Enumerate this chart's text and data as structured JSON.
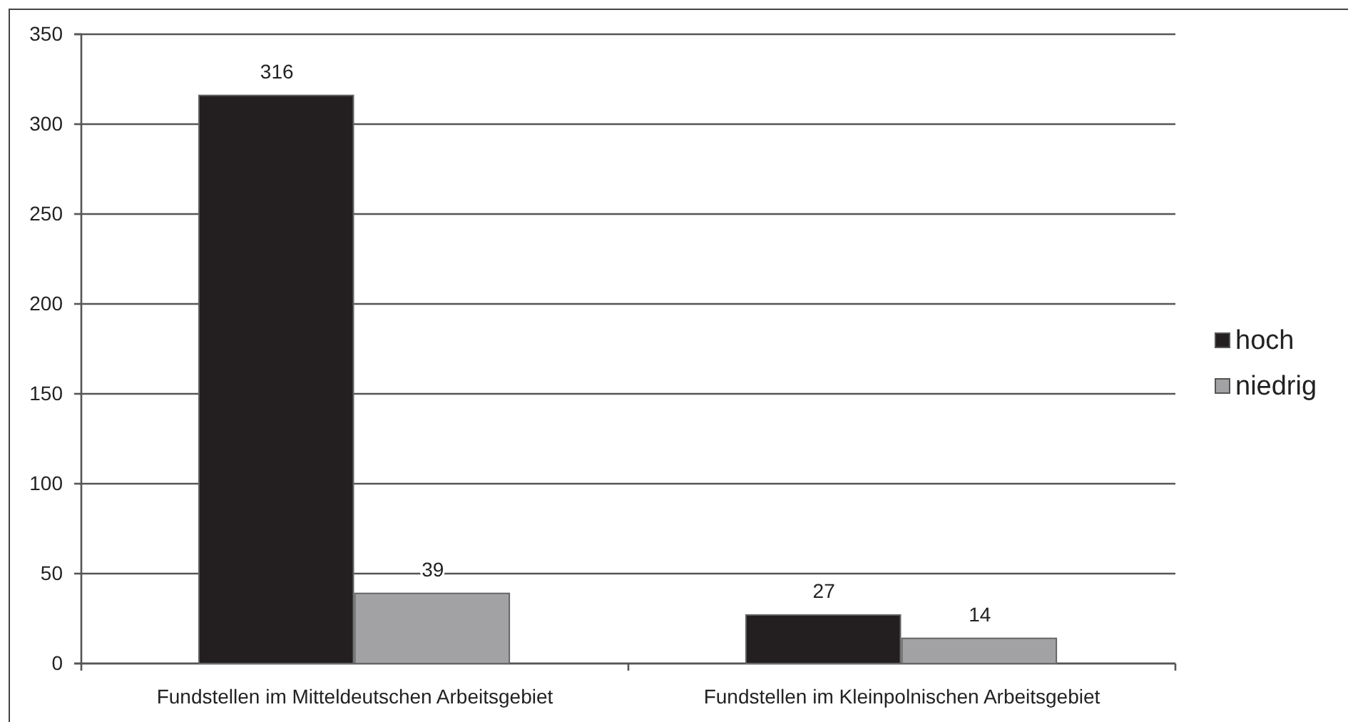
{
  "chart_data": {
    "type": "bar",
    "categories": [
      "Fundstellen im Mitteldeutschen Arbeitsgebiet",
      "Fundstellen im Kleinpolnischen Arbeitsgebiet"
    ],
    "series": [
      {
        "name": "hoch",
        "color": "#231f20",
        "values": [
          316,
          27
        ]
      },
      {
        "name": "niedrig",
        "color": "#a2a2a4",
        "values": [
          39,
          14
        ]
      }
    ],
    "ylim": [
      0,
      350
    ],
    "yticks": [
      0,
      50,
      100,
      150,
      200,
      250,
      300,
      350
    ],
    "grid": "y",
    "legend": "right",
    "data_labels": true
  }
}
